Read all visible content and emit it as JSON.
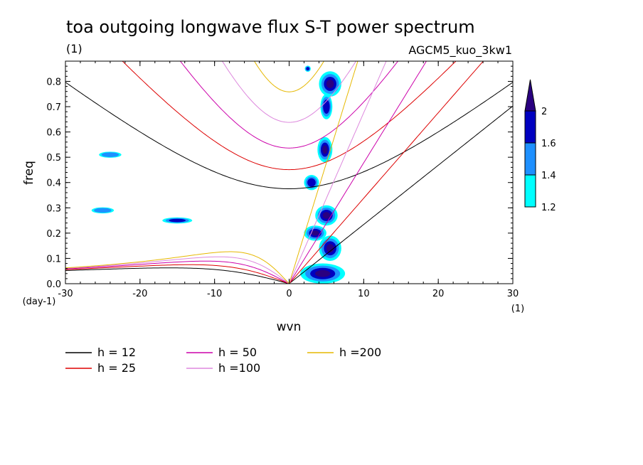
{
  "chart_data": {
    "type": "heatmap",
    "title": "toa outgoing longwave flux S-T power spectrum",
    "subtitle_left": "(1)",
    "subtitle_right": "AGCM5_kuo_3kw1",
    "xlabel": "wvn",
    "ylabel": "freq",
    "x_unit": "(1)",
    "y_unit": "(day-1)",
    "xlim": [
      -30,
      30
    ],
    "ylim": [
      0,
      0.88
    ],
    "x_ticks": [
      "-30",
      "-20",
      "-10",
      "0",
      "10",
      "20",
      "30"
    ],
    "y_ticks": [
      "0.0",
      "0.1",
      "0.2",
      "0.3",
      "0.4",
      "0.5",
      "0.6",
      "0.7",
      "0.8"
    ],
    "colorbar": {
      "levels": [
        "1.2",
        "1.4",
        "1.6",
        "2"
      ],
      "colors": [
        "#00ffff",
        "#1e90ff",
        "#0000c0",
        "#2a0080"
      ]
    },
    "dispersion_curves": [
      {
        "label": "h = 12",
        "h": 12,
        "color": "#000000"
      },
      {
        "label": "h = 25",
        "h": 25,
        "color": "#dd0000"
      },
      {
        "label": "h = 50",
        "h": 50,
        "color": "#cc00aa"
      },
      {
        "label": "h =100",
        "h": 100,
        "color": "#dd88dd"
      },
      {
        "label": "h =200",
        "h": 200,
        "color": "#e6b800"
      }
    ],
    "contour_blobs": [
      {
        "x": 5.5,
        "y": 0.79,
        "rx": 1.5,
        "ry": 0.05,
        "level": 3
      },
      {
        "x": 5.0,
        "y": 0.7,
        "rx": 0.8,
        "ry": 0.05,
        "level": 2
      },
      {
        "x": 4.8,
        "y": 0.53,
        "rx": 1.0,
        "ry": 0.05,
        "level": 3
      },
      {
        "x": 3.0,
        "y": 0.4,
        "rx": 1.0,
        "ry": 0.03,
        "level": 2
      },
      {
        "x": 5.0,
        "y": 0.27,
        "rx": 1.5,
        "ry": 0.04,
        "level": 3
      },
      {
        "x": 3.5,
        "y": 0.2,
        "rx": 1.5,
        "ry": 0.03,
        "level": 3
      },
      {
        "x": 5.5,
        "y": 0.14,
        "rx": 1.5,
        "ry": 0.05,
        "level": 3
      },
      {
        "x": 4.5,
        "y": 0.04,
        "rx": 3.0,
        "ry": 0.04,
        "level": 3
      },
      {
        "x": -15.0,
        "y": 0.25,
        "rx": 2.0,
        "ry": 0.012,
        "level": 2
      },
      {
        "x": -25.0,
        "y": 0.29,
        "rx": 1.5,
        "ry": 0.012,
        "level": 1
      },
      {
        "x": -24.0,
        "y": 0.51,
        "rx": 1.5,
        "ry": 0.012,
        "level": 1
      },
      {
        "x": 2.5,
        "y": 0.85,
        "rx": 0.4,
        "ry": 0.012,
        "level": 2
      }
    ]
  }
}
